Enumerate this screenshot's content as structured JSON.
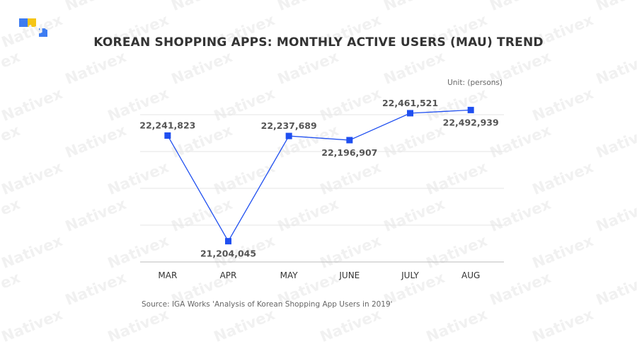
{
  "brand": {
    "watermark": "Nativex",
    "colors": {
      "blue": "#3d7cf2",
      "yellow": "#f5c518",
      "line": "#1f4ff0"
    }
  },
  "chart_data": {
    "type": "line",
    "title": "KOREAN SHOPPING APPS: MONTHLY ACTIVE USERS (MAU) TREND",
    "unit": "Unit: (persons)",
    "categories": [
      "MAR",
      "APR",
      "MAY",
      "JUNE",
      "JULY",
      "AUG"
    ],
    "series": [
      {
        "values": [
          22241823,
          21204045,
          22237689,
          22196907,
          22461521,
          22492939
        ]
      }
    ],
    "data_labels": [
      "22,241,823",
      "21,204,045",
      "22,237,689",
      "22,196,907",
      "22,461,521",
      "22,492,939"
    ],
    "ylim": [
      21000000,
      22600000
    ],
    "grid": true,
    "source": "Source: IGA Works 'Analysis of Korean Shopping App Users in 2019'"
  }
}
